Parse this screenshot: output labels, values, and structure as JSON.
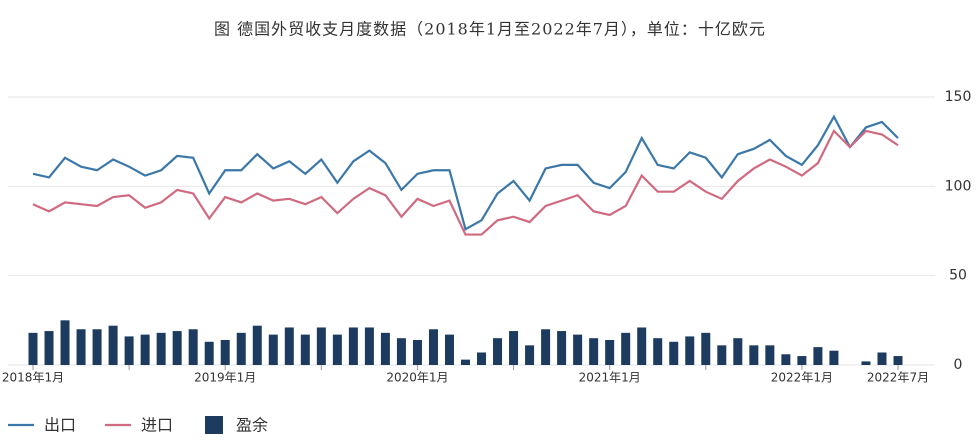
{
  "chart_data": {
    "type": "combo",
    "title": "图 德国外贸收支月度数据（2018年1月至2022年7月），单位：十亿欧元",
    "categories": [
      "2018年1月",
      null,
      null,
      null,
      null,
      null,
      null,
      null,
      null,
      null,
      null,
      null,
      "2019年1月",
      null,
      null,
      null,
      null,
      null,
      null,
      null,
      null,
      null,
      null,
      null,
      "2020年1月",
      null,
      null,
      null,
      null,
      null,
      null,
      null,
      null,
      null,
      null,
      null,
      "2021年1月",
      null,
      null,
      null,
      null,
      null,
      null,
      null,
      null,
      null,
      null,
      null,
      "2022年1月",
      null,
      null,
      null,
      null,
      null,
      "2022年7月"
    ],
    "series": [
      {
        "name": "出口",
        "type": "line",
        "color": "#3b78a9",
        "values": [
          107,
          105,
          116,
          111,
          109,
          115,
          111,
          106,
          109,
          117,
          116,
          96,
          109,
          109,
          118,
          110,
          114,
          107,
          115,
          102,
          114,
          120,
          113,
          98,
          107,
          109,
          109,
          76,
          81,
          96,
          103,
          92,
          110,
          112,
          112,
          102,
          99,
          108,
          127,
          112,
          110,
          119,
          116,
          105,
          118,
          121,
          126,
          117,
          112,
          123,
          139,
          122,
          133,
          136,
          127
        ]
      },
      {
        "name": "进口",
        "type": "line",
        "color": "#d06a80",
        "values": [
          90,
          86,
          91,
          90,
          89,
          94,
          95,
          88,
          91,
          98,
          96,
          82,
          94,
          91,
          96,
          92,
          93,
          90,
          94,
          85,
          93,
          99,
          95,
          83,
          93,
          89,
          92,
          73,
          73,
          81,
          83,
          80,
          89,
          92,
          95,
          86,
          84,
          89,
          106,
          97,
          97,
          103,
          97,
          93,
          103,
          110,
          115,
          111,
          106,
          113,
          131,
          122,
          131,
          129,
          123
        ]
      },
      {
        "name": "盈余",
        "type": "bar",
        "color": "#1d3a5f",
        "values": [
          18,
          19,
          25,
          20,
          20,
          22,
          16,
          17,
          18,
          19,
          20,
          13,
          14,
          18,
          22,
          17,
          21,
          17,
          21,
          17,
          21,
          21,
          18,
          15,
          14,
          20,
          17,
          3,
          7,
          15,
          19,
          11,
          20,
          19,
          17,
          15,
          14,
          18,
          21,
          15,
          13,
          16,
          18,
          11,
          15,
          11,
          11,
          6,
          5,
          10,
          8,
          0,
          2,
          7,
          5
        ]
      }
    ],
    "ylim": [
      0,
      150
    ],
    "yticks": [
      0,
      50,
      100,
      150
    ],
    "grid": true
  }
}
